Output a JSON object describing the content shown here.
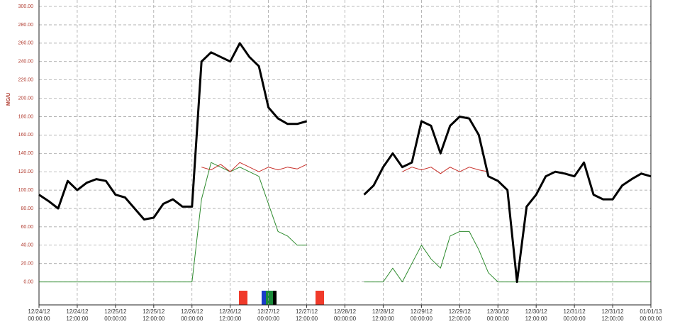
{
  "chart_data": {
    "type": "line",
    "y_label": "MG/U",
    "x": [
      "12/24/12 00:00:00",
      "12/24/12 03:00:00",
      "12/24/12 06:00:00",
      "12/24/12 09:00:00",
      "12/24/12 12:00:00",
      "12/24/12 15:00:00",
      "12/24/12 18:00:00",
      "12/24/12 21:00:00",
      "12/25/12 00:00:00",
      "12/25/12 03:00:00",
      "12/25/12 06:00:00",
      "12/25/12 09:00:00",
      "12/25/12 12:00:00",
      "12/25/12 15:00:00",
      "12/25/12 18:00:00",
      "12/25/12 21:00:00",
      "12/26/12 00:00:00",
      "12/26/12 03:00:00",
      "12/26/12 06:00:00",
      "12/26/12 09:00:00",
      "12/26/12 12:00:00",
      "12/26/12 15:00:00",
      "12/26/12 18:00:00",
      "12/26/12 21:00:00",
      "12/27/12 00:00:00",
      "12/27/12 03:00:00",
      "12/27/12 06:00:00",
      "12/27/12 09:00:00",
      "12/27/12 12:00:00",
      "12/27/12 15:00:00",
      "12/27/12 18:00:00",
      "12/27/12 21:00:00",
      "12/28/12 00:00:00",
      "12/28/12 03:00:00",
      "12/28/12 06:00:00",
      "12/28/12 09:00:00",
      "12/28/12 12:00:00",
      "12/28/12 15:00:00",
      "12/28/12 18:00:00",
      "12/28/12 21:00:00",
      "12/29/12 00:00:00",
      "12/29/12 03:00:00",
      "12/29/12 06:00:00",
      "12/29/12 09:00:00",
      "12/29/12 12:00:00",
      "12/29/12 15:00:00",
      "12/29/12 18:00:00",
      "12/29/12 21:00:00",
      "12/30/12 00:00:00",
      "12/30/12 03:00:00",
      "12/30/12 06:00:00",
      "12/30/12 09:00:00",
      "12/30/12 12:00:00",
      "12/30/12 15:00:00",
      "12/30/12 18:00:00",
      "12/30/12 21:00:00",
      "12/31/12 00:00:00",
      "12/31/12 03:00:00",
      "12/31/12 06:00:00",
      "12/31/12 09:00:00",
      "12/31/12 12:00:00",
      "12/31/12 15:00:00",
      "12/31/12 18:00:00",
      "12/31/12 21:00:00",
      "01/01/13 00:00:00"
    ],
    "series": [
      {
        "color": "#000000",
        "width": 3,
        "values": [
          95,
          88,
          80,
          110,
          100,
          108,
          112,
          110,
          95,
          92,
          80,
          68,
          70,
          85,
          90,
          82,
          82,
          240,
          250,
          245,
          240,
          260,
          245,
          235,
          190,
          178,
          172,
          172,
          175,
          null,
          null,
          null,
          null,
          null,
          95,
          105,
          125,
          140,
          125,
          130,
          175,
          170,
          140,
          170,
          180,
          178,
          160,
          115,
          110,
          100,
          0,
          82,
          95,
          115,
          120,
          118,
          115,
          130,
          95,
          90,
          90,
          105,
          112,
          118,
          115
        ]
      },
      {
        "color": "#c8302a",
        "width": 1,
        "values": [
          null,
          null,
          null,
          null,
          null,
          null,
          null,
          null,
          null,
          null,
          null,
          null,
          null,
          null,
          null,
          null,
          null,
          125,
          122,
          128,
          120,
          130,
          125,
          120,
          125,
          122,
          125,
          123,
          128,
          null,
          null,
          null,
          null,
          null,
          null,
          null,
          null,
          null,
          120,
          125,
          122,
          125,
          118,
          125,
          120,
          125,
          122,
          120,
          null,
          null,
          null,
          null,
          null,
          null,
          null,
          null,
          null,
          null,
          null,
          null,
          null,
          null,
          null,
          null,
          null
        ]
      },
      {
        "color": "#2e8b2e",
        "width": 1,
        "values": [
          0,
          0,
          0,
          0,
          0,
          0,
          0,
          0,
          0,
          0,
          0,
          0,
          0,
          0,
          0,
          0,
          0,
          90,
          130,
          125,
          120,
          125,
          120,
          115,
          85,
          55,
          50,
          40,
          40,
          null,
          null,
          null,
          null,
          null,
          0,
          0,
          0,
          15,
          0,
          20,
          40,
          25,
          15,
          50,
          55,
          55,
          35,
          10,
          0,
          0,
          0,
          0,
          0,
          0,
          0,
          0,
          0,
          0,
          0,
          0,
          0,
          0,
          0,
          0,
          0
        ]
      }
    ],
    "xlim": [
      "12/24/12 00:00:00",
      "01/01/13 00:00:00"
    ],
    "xticks": [
      "12/24/12 00:00:00",
      "12/24/12 12:00:00",
      "12/25/12 00:00:00",
      "12/25/12 12:00:00",
      "12/26/12 00:00:00",
      "12/26/12 12:00:00",
      "12/27/12 00:00:00",
      "12/27/12 12:00:00",
      "12/28/12 00:00:00",
      "12/28/12 12:00:00",
      "12/29/12 00:00:00",
      "12/29/12 12:00:00",
      "12/30/12 00:00:00",
      "12/30/12 12:00:00",
      "12/31/12 00:00:00",
      "12/31/12 12:00:00",
      "01/01/13 00:00:00"
    ],
    "ylim": [
      -25,
      307
    ],
    "yticks": [
      {
        "value": 0,
        "label": "0.00"
      },
      {
        "value": 20,
        "label": "20.00"
      },
      {
        "value": 40,
        "label": "40.00"
      },
      {
        "value": 60,
        "label": "60.00"
      },
      {
        "value": 80,
        "label": "80.00"
      },
      {
        "value": 100,
        "label": "100.00"
      },
      {
        "value": 120,
        "label": "120.00"
      },
      {
        "value": 140,
        "label": "140.00"
      },
      {
        "value": 160,
        "label": "160.00"
      },
      {
        "value": 180,
        "label": "180.00"
      },
      {
        "value": 200,
        "label": "200.00"
      },
      {
        "value": 220,
        "label": "220.00"
      },
      {
        "value": 240,
        "label": "240.00"
      },
      {
        "value": 260,
        "label": "260.00"
      },
      {
        "value": 280,
        "label": "280.00"
      },
      {
        "value": 300,
        "label": "300.00"
      }
    ],
    "grid": true
  }
}
